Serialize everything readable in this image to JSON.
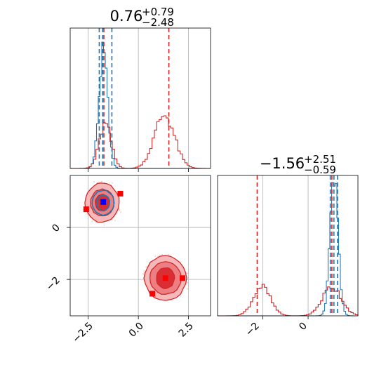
{
  "colors": {
    "blue": "#1f77b4",
    "red": "#d62728",
    "red_fill": "#f4a3a5",
    "blue_marker": "#0000ff",
    "red_marker": "#ff0000",
    "grid": "#b0b0b0"
  },
  "chart_data": {
    "type": "corner",
    "grid": true,
    "axes": {
      "param1": {
        "range": [
          -3.4,
          3.6
        ],
        "ticks": [
          -2.5,
          0.0,
          2.5
        ],
        "tick_labels": [
          "−2.5",
          "0.0",
          "2.5"
        ]
      },
      "param2": {
        "range": [
          -3.4,
          2.0
        ],
        "ticks": [
          0,
          -2
        ],
        "tick_labels": [
          "0",
          "−2"
        ]
      },
      "param2_hist_x": {
        "range": [
          -4.0,
          2.2
        ],
        "ticks": [
          -2,
          0
        ],
        "tick_labels": [
          "−2",
          "0"
        ]
      }
    },
    "titles": {
      "param1": {
        "median": "0.76",
        "plus": "+0.79",
        "minus": "−2.48"
      },
      "param2": {
        "median": "−1.56",
        "plus": "+2.51",
        "minus": "−0.59"
      }
    },
    "hist_param1": {
      "blue_peak": {
        "mean": -1.75,
        "sd": 0.22
      },
      "red_peaks": [
        {
          "mean": -1.65,
          "sd": 0.3,
          "weight": 0.45
        },
        {
          "mean": 1.3,
          "sd": 0.5,
          "weight": 0.55
        }
      ],
      "blue_quantiles": [
        -1.95,
        -1.78,
        -1.32
      ],
      "red_quantiles": [
        -1.72,
        1.52
      ]
    },
    "hist_param2": {
      "blue_peak": {
        "mean": 1.15,
        "sd": 0.18
      },
      "red_peaks": [
        {
          "mean": -2.05,
          "sd": 0.38,
          "weight": 0.5
        },
        {
          "mean": 1.05,
          "sd": 0.42,
          "weight": 0.5
        }
      ],
      "blue_quantiles": [
        0.98,
        1.14,
        1.3
      ],
      "red_quantiles": [
        -2.25,
        1.05
      ]
    },
    "contours_2d": {
      "red_modes": [
        {
          "center": [
            -1.8,
            0.95
          ],
          "radii": [
            [
              0.85,
              0.75
            ],
            [
              0.58,
              0.52
            ],
            [
              0.35,
              0.32
            ]
          ]
        },
        {
          "center": [
            1.35,
            -1.95
          ],
          "radii": [
            [
              1.05,
              0.85
            ],
            [
              0.78,
              0.62
            ],
            [
              0.45,
              0.4
            ]
          ]
        }
      ],
      "blue_mode": {
        "center": [
          -1.75,
          0.95
        ],
        "radii": [
          [
            0.55,
            0.48
          ],
          [
            0.32,
            0.3
          ]
        ]
      }
    },
    "markers_2d": {
      "blue_square": [
        -1.75,
        0.98
      ],
      "red_squares": [
        [
          -2.6,
          0.7
        ],
        [
          -0.9,
          1.3
        ],
        [
          0.7,
          -2.55
        ],
        [
          1.35,
          -1.95
        ],
        [
          2.2,
          -1.95
        ]
      ]
    }
  }
}
